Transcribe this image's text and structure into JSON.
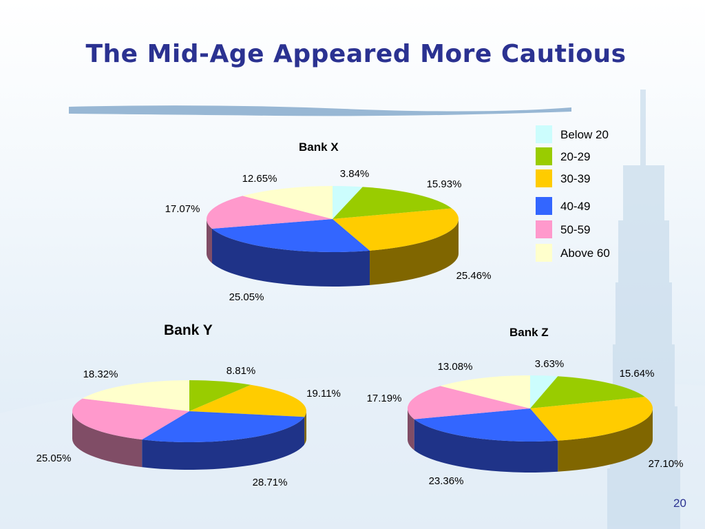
{
  "slide": {
    "title": "The Mid-Age Appeared More Cautious",
    "page_number": "20"
  },
  "legend": [
    {
      "label": "Below 20",
      "color": "#ccfdfd"
    },
    {
      "label": "20-29",
      "color": "#99cc00"
    },
    {
      "label": "30-39",
      "color": "#ffcc00"
    },
    {
      "label": "40-49",
      "color": "#3366ff"
    },
    {
      "label": "50-59",
      "color": "#ff99cc"
    },
    {
      "label": "Above 60",
      "color": "#ffffcc"
    }
  ],
  "chart_data": [
    {
      "type": "pie",
      "title": "Bank X",
      "categories": [
        "Below 20",
        "20-29",
        "30-39",
        "40-49",
        "50-59",
        "Above 60"
      ],
      "values": [
        3.84,
        15.93,
        25.46,
        25.05,
        17.07,
        12.65
      ],
      "labels": [
        "3.84%",
        "15.93%",
        "25.46%",
        "25.05%",
        "17.07%",
        "12.65%"
      ]
    },
    {
      "type": "pie",
      "title": "Bank Y",
      "categories": [
        "Below 20",
        "20-29",
        "30-39",
        "40-49",
        "50-59",
        "Above 60"
      ],
      "values": [
        0,
        8.81,
        19.11,
        28.71,
        25.05,
        18.32
      ],
      "labels": [
        "",
        "8.81%",
        "19.11%",
        "28.71%",
        "25.05%",
        "18.32%"
      ]
    },
    {
      "type": "pie",
      "title": "Bank Z",
      "categories": [
        "Below 20",
        "20-29",
        "30-39",
        "40-49",
        "50-59",
        "Above 60"
      ],
      "values": [
        3.63,
        15.64,
        27.1,
        23.36,
        17.19,
        13.08
      ],
      "labels": [
        "3.63%",
        "15.64%",
        "27.10%",
        "23.36%",
        "17.19%",
        "13.08%"
      ]
    }
  ]
}
